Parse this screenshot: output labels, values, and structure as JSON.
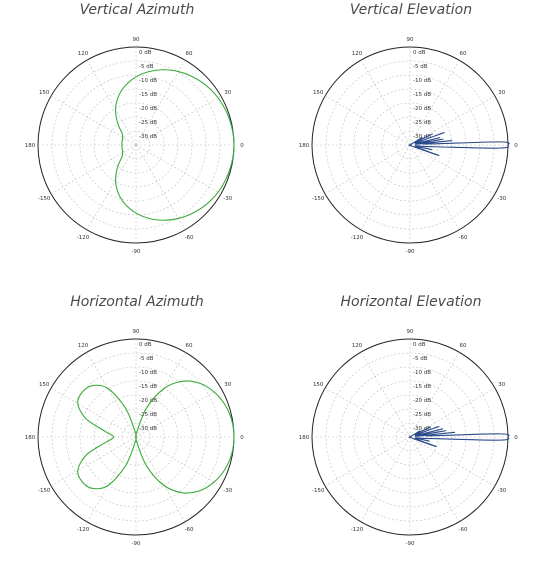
{
  "chart_data": [
    {
      "type": "polar",
      "title": "Vertical Azimuth",
      "series_color": "#3aab3a",
      "angle_ticks": [
        "0",
        "30",
        "60",
        "90",
        "120",
        "150",
        "180",
        "-150",
        "-120",
        "-90",
        "-60",
        "-30"
      ],
      "radial_labels": [
        "0 dB",
        "-5 dB",
        "-10 dB",
        "-15 dB",
        "-20 dB",
        "-25 dB",
        "-30 dB"
      ],
      "rlim": [
        -35,
        0
      ],
      "grid": true,
      "series": [
        {
          "angles_deg": [
            0,
            10,
            20,
            30,
            40,
            50,
            60,
            70,
            80,
            90,
            100,
            110,
            120,
            130,
            140,
            150,
            160,
            170,
            180,
            190,
            200,
            210,
            220,
            230,
            240,
            250,
            260,
            270,
            280,
            290,
            300,
            310,
            320,
            330,
            340,
            350
          ],
          "gain_db": [
            0,
            -0.2,
            -0.6,
            -1.2,
            -2.1,
            -3.3,
            -4.7,
            -6.4,
            -8.4,
            -10.7,
            -13.4,
            -16.6,
            -20.4,
            -24.8,
            -28.5,
            -29.5,
            -29.8,
            -29.9,
            -30,
            -29.9,
            -29.8,
            -29.5,
            -28.5,
            -24.8,
            -20.4,
            -16.6,
            -13.4,
            -10.7,
            -8.4,
            -6.4,
            -4.7,
            -3.3,
            -2.1,
            -1.2,
            -0.6,
            -0.2
          ]
        }
      ]
    },
    {
      "type": "polar",
      "title": "Vertical Elevation",
      "series_color": "#2a4a8a",
      "angle_ticks": [
        "0",
        "30",
        "60",
        "90",
        "120",
        "150",
        "180",
        "-150",
        "-120",
        "-90",
        "-60",
        "-30"
      ],
      "radial_labels": [
        "0 dB",
        "-5 dB",
        "-10 dB",
        "-15 dB",
        "-20 dB",
        "-25 dB",
        "-30 dB"
      ],
      "rlim": [
        -35,
        0
      ],
      "grid": true,
      "series": [
        {
          "angles_deg": [
            -30,
            -24,
            -20,
            -16,
            -12,
            -9,
            -6,
            -4,
            -2,
            0,
            2,
            4,
            6,
            8,
            10,
            12,
            14,
            17,
            20,
            23,
            26,
            29,
            32,
            36,
            40
          ],
          "gain_db": [
            -35,
            -33,
            -24,
            -33,
            -27,
            -33,
            -30,
            -26,
            -3,
            0,
            -3,
            -30,
            -20,
            -33,
            -23,
            -33,
            -24,
            -33,
            -22,
            -33,
            -26,
            -33,
            -30,
            -35,
            -35
          ]
        }
      ]
    },
    {
      "type": "polar",
      "title": "Horizontal Azimuth",
      "series_color": "#3aab3a",
      "angle_ticks": [
        "0",
        "30",
        "60",
        "90",
        "120",
        "150",
        "180",
        "-150",
        "-120",
        "-90",
        "-60",
        "-30"
      ],
      "radial_labels": [
        "0 dB",
        "-5 dB",
        "-10 dB",
        "-15 dB",
        "-20 dB",
        "-25 dB",
        "-30 dB"
      ],
      "rlim": [
        -35,
        0
      ],
      "grid": true,
      "series": [
        {
          "angles_deg": [
            0,
            10,
            20,
            30,
            40,
            50,
            60,
            70,
            80,
            90,
            100,
            110,
            120,
            130,
            140,
            150,
            160,
            170,
            180,
            190,
            200,
            210,
            220,
            230,
            240,
            250,
            260,
            270,
            280,
            290,
            300,
            310,
            320,
            330,
            340,
            350
          ],
          "gain_db": [
            0,
            -0.3,
            -1.2,
            -2.8,
            -5.2,
            -9,
            -15,
            -24,
            -33,
            -35,
            -33,
            -24,
            -15,
            -11,
            -10,
            -11,
            -16,
            -24,
            -27,
            -24,
            -16,
            -11,
            -10,
            -11,
            -15,
            -24,
            -33,
            -35,
            -33,
            -24,
            -15,
            -9,
            -5.2,
            -2.8,
            -1.2,
            -0.3
          ]
        }
      ]
    },
    {
      "type": "polar",
      "title": "Horizontal Elevation",
      "series_color": "#2a4a8a",
      "angle_ticks": [
        "0",
        "30",
        "60",
        "90",
        "120",
        "150",
        "180",
        "-150",
        "-120",
        "-90",
        "-60",
        "-30"
      ],
      "radial_labels": [
        "0 dB",
        "-5 dB",
        "-10 dB",
        "-15 dB",
        "-20 dB",
        "-25 dB",
        "-30 dB"
      ],
      "rlim": [
        -35,
        0
      ],
      "grid": true,
      "series": [
        {
          "angles_deg": [
            -30,
            -24,
            -20,
            -16,
            -12,
            -9,
            -6,
            -4,
            -2,
            0,
            2,
            4,
            6,
            8,
            10,
            12,
            14,
            17,
            20,
            23,
            26,
            29,
            32,
            36,
            40
          ],
          "gain_db": [
            -35,
            -33,
            -25,
            -33,
            -28,
            -33,
            -30,
            -27,
            -3,
            0,
            -3,
            -29,
            -19,
            -33,
            -22,
            -33,
            -23,
            -33,
            -24,
            -33,
            -27,
            -33,
            -31,
            -35,
            -35
          ]
        }
      ]
    }
  ]
}
